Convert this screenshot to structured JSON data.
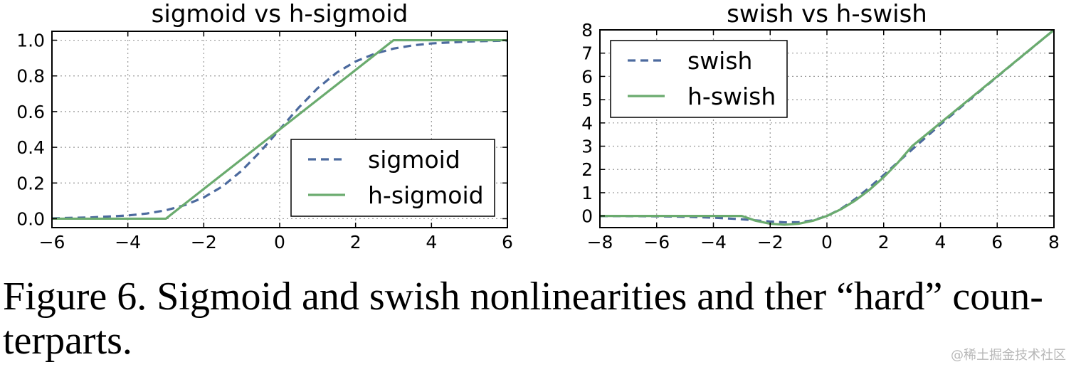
{
  "chart_data": [
    {
      "type": "line",
      "title": "sigmoid vs h-sigmoid",
      "xlabel": "",
      "ylabel": "",
      "xlim": [
        -6,
        6
      ],
      "ylim": [
        -0.05,
        1.05
      ],
      "xticks": [
        -6,
        -4,
        -2,
        0,
        2,
        4,
        6
      ],
      "xtick_labels": [
        "−6",
        "−4",
        "−2",
        "0",
        "2",
        "4",
        "6"
      ],
      "yticks": [
        0.0,
        0.2,
        0.4,
        0.6,
        0.8,
        1.0
      ],
      "ytick_labels": [
        "0.0",
        "0.2",
        "0.4",
        "0.6",
        "0.8",
        "1.0"
      ],
      "grid": true,
      "legend_position": "lower-right",
      "series": [
        {
          "name": "sigmoid",
          "style": "dashed",
          "color": "#4c6a9e",
          "x": [
            -6,
            -5,
            -4,
            -3.5,
            -3,
            -2.5,
            -2,
            -1.5,
            -1,
            -0.5,
            0,
            0.5,
            1,
            1.5,
            2,
            2.5,
            3,
            3.5,
            4,
            5,
            6
          ],
          "y": [
            0.002,
            0.007,
            0.018,
            0.029,
            0.047,
            0.076,
            0.119,
            0.182,
            0.269,
            0.378,
            0.5,
            0.622,
            0.731,
            0.818,
            0.881,
            0.924,
            0.953,
            0.971,
            0.982,
            0.993,
            0.998
          ]
        },
        {
          "name": "h-sigmoid",
          "style": "solid",
          "color": "#6aab6e",
          "x": [
            -6,
            -3,
            3,
            6
          ],
          "y": [
            0,
            0,
            1,
            1
          ]
        }
      ]
    },
    {
      "type": "line",
      "title": "swish vs h-swish",
      "xlabel": "",
      "ylabel": "",
      "xlim": [
        -8,
        8
      ],
      "ylim": [
        -0.5,
        8
      ],
      "xticks": [
        -8,
        -6,
        -4,
        -2,
        0,
        2,
        4,
        6,
        8
      ],
      "xtick_labels": [
        "−8",
        "−6",
        "−4",
        "−2",
        "0",
        "2",
        "4",
        "6",
        "8"
      ],
      "yticks": [
        0,
        1,
        2,
        3,
        4,
        5,
        6,
        7,
        8
      ],
      "ytick_labels": [
        "0",
        "1",
        "2",
        "3",
        "4",
        "5",
        "6",
        "7",
        "8"
      ],
      "grid": true,
      "legend_position": "upper-left",
      "series": [
        {
          "name": "swish",
          "style": "dashed",
          "color": "#4c6a9e",
          "x": [
            -8,
            -7,
            -6,
            -5,
            -4,
            -3,
            -2.5,
            -2,
            -1.5,
            -1,
            -0.5,
            0,
            0.5,
            1,
            1.5,
            2,
            2.5,
            3,
            4,
            5,
            6,
            7,
            8
          ],
          "y": [
            -0.003,
            -0.006,
            -0.015,
            -0.033,
            -0.072,
            -0.142,
            -0.19,
            -0.238,
            -0.273,
            -0.269,
            -0.189,
            0,
            0.311,
            0.731,
            1.227,
            1.762,
            2.31,
            2.858,
            3.928,
            4.967,
            5.985,
            6.994,
            7.997
          ]
        },
        {
          "name": "h-swish",
          "style": "solid",
          "color": "#6aab6e",
          "x": [
            -8,
            -3,
            -2.5,
            -2,
            -1.5,
            -1,
            -0.5,
            0,
            0.5,
            1,
            1.5,
            2,
            2.5,
            3,
            8
          ],
          "y": [
            0,
            0,
            -0.208,
            -0.333,
            -0.375,
            -0.333,
            -0.208,
            0,
            0.292,
            0.667,
            1.125,
            1.667,
            2.292,
            3,
            8
          ]
        }
      ]
    }
  ],
  "caption": "Figure 6. Sigmoid and swish nonlinearities and ther “hard” counterparts.",
  "caption_line1": "Figure 6. Sigmoid and swish nonlinearities and ther “hard” coun-",
  "caption_line2": "terparts.",
  "watermark": "@稀土掘金技术社区"
}
